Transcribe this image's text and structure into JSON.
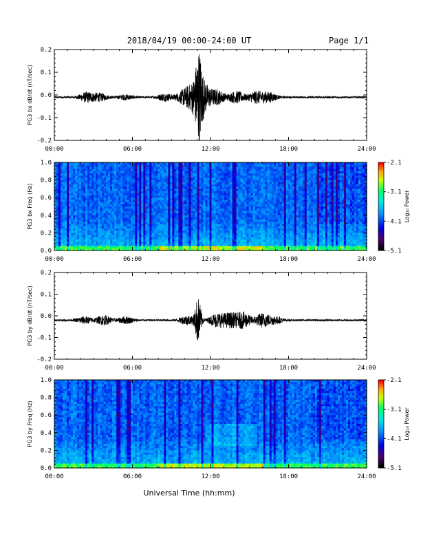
{
  "header": {
    "title": "2018/04/19  00:00-24:00 UT",
    "page": "Page 1/1"
  },
  "footer": {
    "xlabel": "Universal Time (hh:mm)"
  },
  "colorbar": {
    "label": "Log₁₀ Power",
    "ticks": [
      "-2.1",
      "-3.1",
      "-4.1",
      "-5.1"
    ],
    "range": [
      -5.1,
      -2.1
    ],
    "colors": [
      "#000000",
      "#5a007a",
      "#0000ff",
      "#00c8ff",
      "#00ff64",
      "#c8ff00",
      "#ffaa00",
      "#ff0000"
    ]
  },
  "chart_data": [
    {
      "type": "line",
      "ylabel": "PG3 bx dB/dt (nT/sec)",
      "xlim": [
        0,
        24
      ],
      "ylim": [
        -0.2,
        0.2
      ],
      "xticks": [
        "00:00",
        "06:00",
        "12:00",
        "18:00",
        "24:00"
      ],
      "yticks": [
        "0.2",
        "0.1",
        "0.0",
        "-0.1",
        "-0.2"
      ],
      "baseline": -0.01,
      "activity": [
        {
          "hour": 2.5,
          "amp": 0.02
        },
        {
          "hour": 3.5,
          "amp": 0.015
        },
        {
          "hour": 5.5,
          "amp": 0.01
        },
        {
          "hour": 8.5,
          "amp": 0.015
        },
        {
          "hour": 10.0,
          "amp": 0.03
        },
        {
          "hour": 10.8,
          "amp": 0.05
        },
        {
          "hour": 11.1,
          "amp": 0.13
        },
        {
          "hour": 11.4,
          "amp": 0.06
        },
        {
          "hour": 12.5,
          "amp": 0.03
        },
        {
          "hour": 14.0,
          "amp": 0.025
        },
        {
          "hour": 15.5,
          "amp": 0.025
        },
        {
          "hour": 16.5,
          "amp": 0.02
        }
      ]
    },
    {
      "type": "heatmap",
      "ylabel": "PG3 bx Freq (Hz)",
      "xlim": [
        0,
        24
      ],
      "ylim": [
        0.0,
        1.0
      ],
      "xticks": [
        "00:00",
        "06:00",
        "12:00",
        "18:00",
        "24:00"
      ],
      "yticks": [
        "1.0",
        "0.8",
        "0.6",
        "0.4",
        "0.2",
        "0.0"
      ],
      "zlim": [
        -5.1,
        -2.1
      ]
    },
    {
      "type": "line",
      "ylabel": "PG3 by dB/dt (nT/sec)",
      "xlim": [
        0,
        24
      ],
      "ylim": [
        -0.2,
        0.2
      ],
      "xticks": [
        "00:00",
        "06:00",
        "12:00",
        "18:00",
        "24:00"
      ],
      "yticks": [
        "0.2",
        "0.1",
        "0.0",
        "-0.1",
        "-0.2"
      ],
      "baseline": -0.02,
      "activity": [
        {
          "hour": 2.3,
          "amp": 0.015
        },
        {
          "hour": 3.8,
          "amp": 0.02
        },
        {
          "hour": 5.5,
          "amp": 0.015
        },
        {
          "hour": 10.2,
          "amp": 0.02
        },
        {
          "hour": 11.05,
          "amp": 0.1
        },
        {
          "hour": 12.5,
          "amp": 0.03
        },
        {
          "hour": 13.5,
          "amp": 0.03
        },
        {
          "hour": 14.5,
          "amp": 0.035
        },
        {
          "hour": 16.0,
          "amp": 0.03
        },
        {
          "hour": 17.0,
          "amp": 0.015
        }
      ]
    },
    {
      "type": "heatmap",
      "ylabel": "PG3 by Freq (Hz)",
      "xlim": [
        0,
        24
      ],
      "ylim": [
        0.0,
        1.0
      ],
      "xticks": [
        "00:00",
        "06:00",
        "12:00",
        "18:00",
        "24:00"
      ],
      "yticks": [
        "1.0",
        "0.8",
        "0.6",
        "0.4",
        "0.2",
        "0.0"
      ],
      "zlim": [
        -5.1,
        -2.1
      ]
    }
  ]
}
